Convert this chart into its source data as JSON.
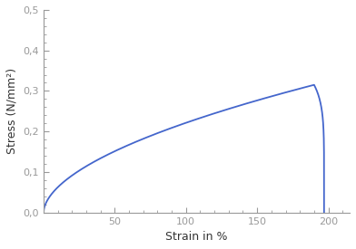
{
  "title": "",
  "xlabel": "Strain in %",
  "ylabel": "Stress (N/mm²)",
  "xlim": [
    0,
    215
  ],
  "ylim": [
    0.0,
    0.5
  ],
  "xticks": [
    50,
    100,
    150,
    200
  ],
  "yticks": [
    0.0,
    0.1,
    0.2,
    0.3,
    0.4,
    0.5
  ],
  "ytick_labels": [
    "0,0",
    "0,1",
    "0,2",
    "0,3",
    "0,4",
    "0,5"
  ],
  "xtick_labels": [
    "50",
    "100",
    "150",
    "200"
  ],
  "line_color": "#4466cc",
  "line_width": 1.3,
  "background_color": "#ffffff",
  "peak_strain": 190,
  "peak_stress": 0.315,
  "break_strain": 197,
  "break_stress": 0.003,
  "curve_exponent": 0.55,
  "spine_color": "#999999",
  "tick_color": "#999999",
  "label_color": "#333333",
  "tick_fontsize": 8,
  "label_fontsize": 9
}
